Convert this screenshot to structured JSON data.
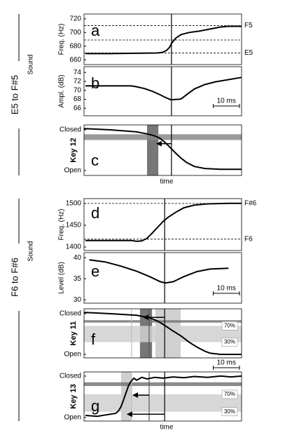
{
  "sections": [
    {
      "title": "E5 to F#5",
      "group_label": "Sound",
      "xlabel": "time"
    },
    {
      "title": "F6 to F#6",
      "group_label": "Sound",
      "xlabel": "time"
    }
  ],
  "chart_data": [
    {
      "type": "line",
      "panel": "a",
      "ylabel": "Freq. (Hz)",
      "xlim": [
        0,
        60
      ],
      "ylim": [
        653,
        727
      ],
      "yticks": [
        660,
        680,
        700,
        720
      ],
      "color": "#000",
      "x": [
        0.5,
        10,
        20,
        28,
        30,
        31.5,
        32.5,
        33.5,
        35,
        37,
        40,
        44,
        48,
        52,
        55,
        60
      ],
      "values": [
        669,
        669,
        669.5,
        670,
        671,
        674,
        678,
        685,
        692,
        697,
        700,
        702,
        705,
        708,
        709,
        709
      ],
      "reference_lines": [
        {
          "value": 710,
          "label": "F5"
        },
        {
          "value": 689
        },
        {
          "value": 670,
          "label": "E5"
        }
      ],
      "vlines": [
        {
          "value": 33.3,
          "color": "#000"
        }
      ]
    },
    {
      "type": "line",
      "panel": "b",
      "ylabel": "Ampl. (dB)",
      "xlim": [
        0,
        60
      ],
      "ylim": [
        64.3,
        75.3
      ],
      "yticks": [
        66,
        68,
        70,
        72,
        74
      ],
      "color": "#000",
      "x": [
        0.5,
        10,
        18,
        20,
        23,
        26,
        29,
        31,
        33,
        36,
        37,
        39,
        42,
        46,
        50,
        55,
        60
      ],
      "values": [
        71,
        71,
        71,
        70.8,
        70.4,
        69.8,
        69,
        68.4,
        67.9,
        68,
        68.1,
        69,
        70.3,
        71.3,
        71.9,
        72.4,
        72.9
      ],
      "vlines": [
        {
          "value": 33.3,
          "color": "#000"
        }
      ],
      "scale_bar": {
        "label": "10 ms",
        "length": 10
      }
    },
    {
      "type": "line",
      "panel": "c",
      "ylabel": "Key 12",
      "ylabel_weight": "bold",
      "xlim": [
        0,
        60
      ],
      "ylim": [
        -0.12,
        1.12
      ],
      "yticks": [
        {
          "value": 1,
          "label": "Closed"
        },
        {
          "value": 0,
          "label": "Open"
        }
      ],
      "color": "#000",
      "x": [
        0,
        10,
        20,
        24,
        27,
        29,
        31,
        33,
        35,
        37,
        39,
        42,
        46,
        52,
        60
      ],
      "values": [
        1.03,
        1.0,
        0.95,
        0.9,
        0.85,
        0.79,
        0.68,
        0.55,
        0.42,
        0.3,
        0.2,
        0.1,
        0.05,
        0.03,
        0.03
      ],
      "hbands": [
        {
          "range": [
            0.75,
            0.89
          ],
          "color": "#888"
        }
      ],
      "vbands": [
        {
          "range": [
            24,
            28.3
          ],
          "color": "#777"
        }
      ],
      "vlines": [
        {
          "value": 33.3,
          "color": "#000"
        }
      ],
      "arrows": [
        {
          "y": 0.66,
          "from": 33.3,
          "to": 27.7
        }
      ]
    },
    {
      "type": "line",
      "panel": "d",
      "ylabel": "Freq. (Hz)",
      "xlim": [
        0,
        60
      ],
      "ylim": [
        1392,
        1511
      ],
      "yticks": [
        1400,
        1450,
        1500
      ],
      "color": "#000",
      "x": [
        0.5,
        10,
        18,
        20,
        22,
        24,
        26,
        28,
        30,
        32,
        35,
        38,
        42,
        47,
        55,
        60
      ],
      "values": [
        1415,
        1415,
        1415,
        1413,
        1414,
        1420,
        1432,
        1445,
        1458,
        1468,
        1480,
        1490,
        1496,
        1499,
        1500,
        1500
      ],
      "reference_lines": [
        {
          "value": 1500,
          "label": "F#6"
        },
        {
          "value": 1418,
          "label": "F6"
        }
      ],
      "vlines": [
        {
          "value": 30.7,
          "color": "#000"
        }
      ]
    },
    {
      "type": "line",
      "panel": "e",
      "ylabel": "Level (dB)",
      "xlim": [
        0,
        60
      ],
      "ylim": [
        29.2,
        41.2
      ],
      "yticks": [
        30,
        35,
        40
      ],
      "color": "#000",
      "x": [
        2,
        8,
        14,
        20,
        25,
        29,
        31,
        34,
        38,
        43,
        48,
        55
      ],
      "values": [
        39.5,
        39,
        38,
        36.8,
        35.5,
        34.3,
        34,
        34.3,
        35.5,
        36.7,
        37.3,
        37.5
      ],
      "vlines": [
        {
          "value": 30.7,
          "color": "#000"
        }
      ],
      "scale_bar": {
        "label": "10 ms",
        "length": 10
      }
    },
    {
      "type": "line",
      "panel": "f",
      "ylabel": "Key 11",
      "ylabel_weight": "bold",
      "xlim": [
        0,
        60
      ],
      "ylim": [
        -0.086,
        1.12
      ],
      "yticks": [
        {
          "value": 1,
          "label": "Closed"
        },
        {
          "value": 0,
          "label": "Open"
        }
      ],
      "color": "#000",
      "x": [
        0,
        10,
        20,
        25,
        28,
        31,
        34,
        37,
        40,
        43,
        46,
        48,
        52,
        60
      ],
      "values": [
        1.03,
        1.0,
        0.96,
        0.9,
        0.82,
        0.7,
        0.57,
        0.45,
        0.3,
        0.18,
        0.08,
        0.03,
        0.0,
        0.0
      ],
      "vbands": [
        {
          "range": [
            27.2,
            36.8
          ],
          "color": "#d0d0d0"
        },
        {
          "range": [
            21.3,
            25.9
          ],
          "color": "#777"
        }
      ],
      "hbands": [
        {
          "range": [
            0.3,
            0.7
          ],
          "color": "#d0d0d0",
          "labels": [
            "70%",
            "30%"
          ]
        },
        {
          "range": [
            0.78,
            0.84
          ],
          "color": "#777"
        }
      ],
      "vlines": [
        {
          "value": 18.1,
          "color": "#bbb"
        },
        {
          "value": 24.8,
          "color": "#555"
        },
        {
          "value": 30.7,
          "color": "#000"
        }
      ],
      "arrows": [
        {
          "y": 0.91,
          "from": 30.7,
          "to": 22.7
        }
      ]
    },
    {
      "type": "line",
      "panel": "g",
      "ylabel": "Key 13",
      "ylabel_weight": "bold",
      "xlim": [
        0,
        60
      ],
      "ylim": [
        -0.085,
        1.1
      ],
      "yticks": [
        {
          "value": 1,
          "label": "Closed"
        },
        {
          "value": 0,
          "label": "Open"
        }
      ],
      "color": "#000",
      "x": [
        0.5,
        5,
        9,
        12,
        13,
        14,
        15,
        16,
        17,
        18,
        19,
        20,
        22,
        24,
        27,
        30,
        34,
        38,
        42,
        47,
        52,
        56,
        60
      ],
      "values": [
        0.05,
        0.03,
        0.07,
        0.1,
        0.15,
        0.25,
        0.42,
        0.6,
        0.78,
        0.88,
        0.95,
        0.9,
        0.97,
        0.93,
        0.97,
        0.95,
        0.98,
        0.96,
        0.99,
        0.97,
        1.0,
        0.98,
        1.0
      ],
      "vbands": [
        {
          "range": [
            14.1,
            18.1
          ],
          "color": "#d0d0d0"
        }
      ],
      "hbands": [
        {
          "range": [
            0.14,
            0.56
          ],
          "color": "#d0d0d0",
          "labels": [
            "70%",
            "30%"
          ]
        },
        {
          "range": [
            0.76,
            0.85
          ],
          "color": "#777"
        }
      ],
      "vlines": [
        {
          "value": 18.1,
          "color": "#bbb"
        },
        {
          "value": 24.8,
          "color": "#555"
        },
        {
          "value": 30.7,
          "color": "#000"
        }
      ],
      "arrows": [
        {
          "y": 0.54,
          "from": 24.8,
          "to": 18.7
        },
        {
          "y": 0.08,
          "from": 30.7,
          "to": 16.5
        }
      ],
      "scale_bar": {
        "label": "10 ms",
        "length": 10
      }
    }
  ]
}
